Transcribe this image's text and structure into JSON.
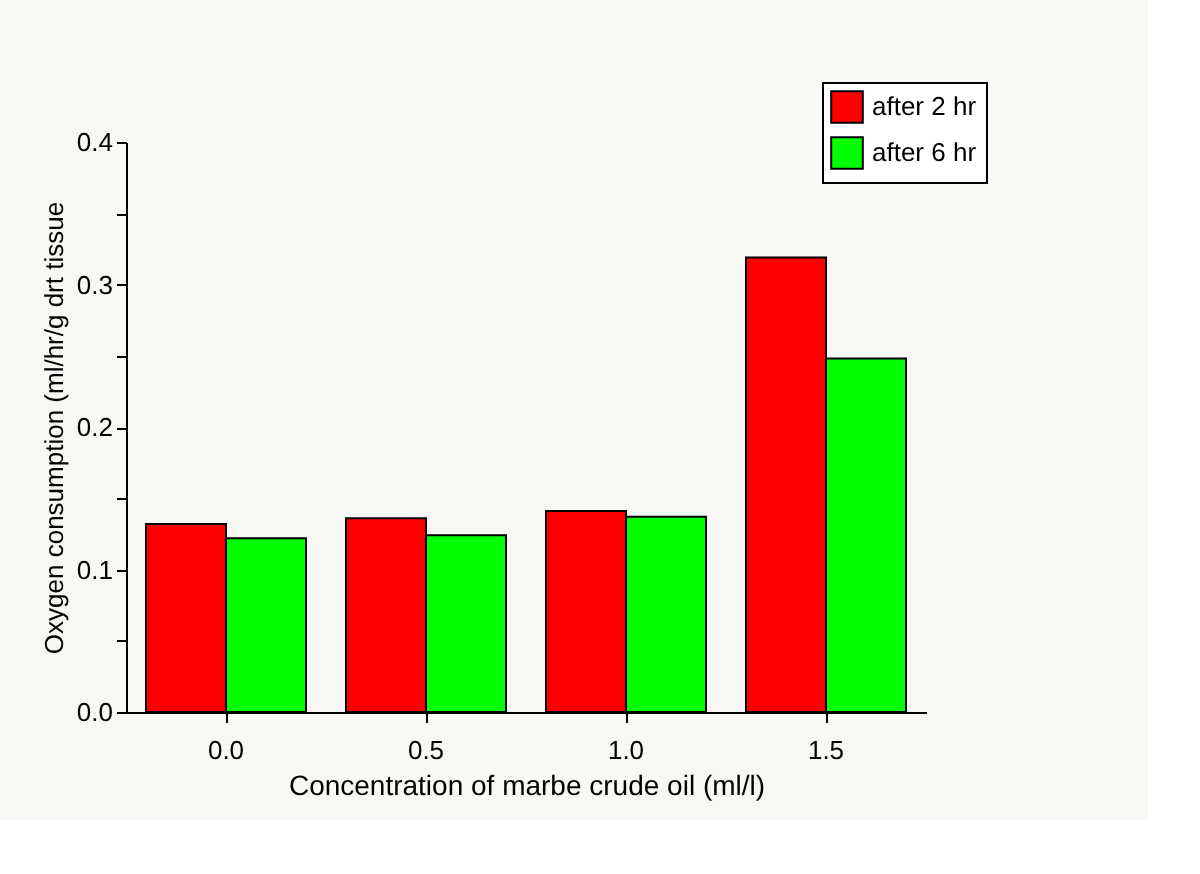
{
  "chart_data": {
    "type": "bar",
    "xlabel": "Concentration of marbe crude oil (ml/l)",
    "ylabel": "Oxygen consumption (ml/hr/g drt tissue",
    "categories": [
      "0.0",
      "0.5",
      "1.0",
      "1.5"
    ],
    "series": [
      {
        "name": "after 2 hr",
        "color": "#ff0000",
        "values": [
          0.132,
          0.136,
          0.141,
          0.319
        ]
      },
      {
        "name": "after 6 hr",
        "color": "#00ff00",
        "values": [
          0.122,
          0.124,
          0.137,
          0.248
        ]
      }
    ],
    "ylim": [
      0,
      0.4
    ],
    "yticks": [
      {
        "value": 0.0,
        "label": "0.0"
      },
      {
        "value": 0.05,
        "label": null
      },
      {
        "value": 0.1,
        "label": "0.1"
      },
      {
        "value": 0.15,
        "label": null
      },
      {
        "value": 0.2,
        "label": "0.2"
      },
      {
        "value": 0.25,
        "label": null
      },
      {
        "value": 0.3,
        "label": "0.3"
      },
      {
        "value": 0.35,
        "label": null
      },
      {
        "value": 0.4,
        "label": "0.4"
      }
    ],
    "grid": false,
    "legend": "top right"
  }
}
